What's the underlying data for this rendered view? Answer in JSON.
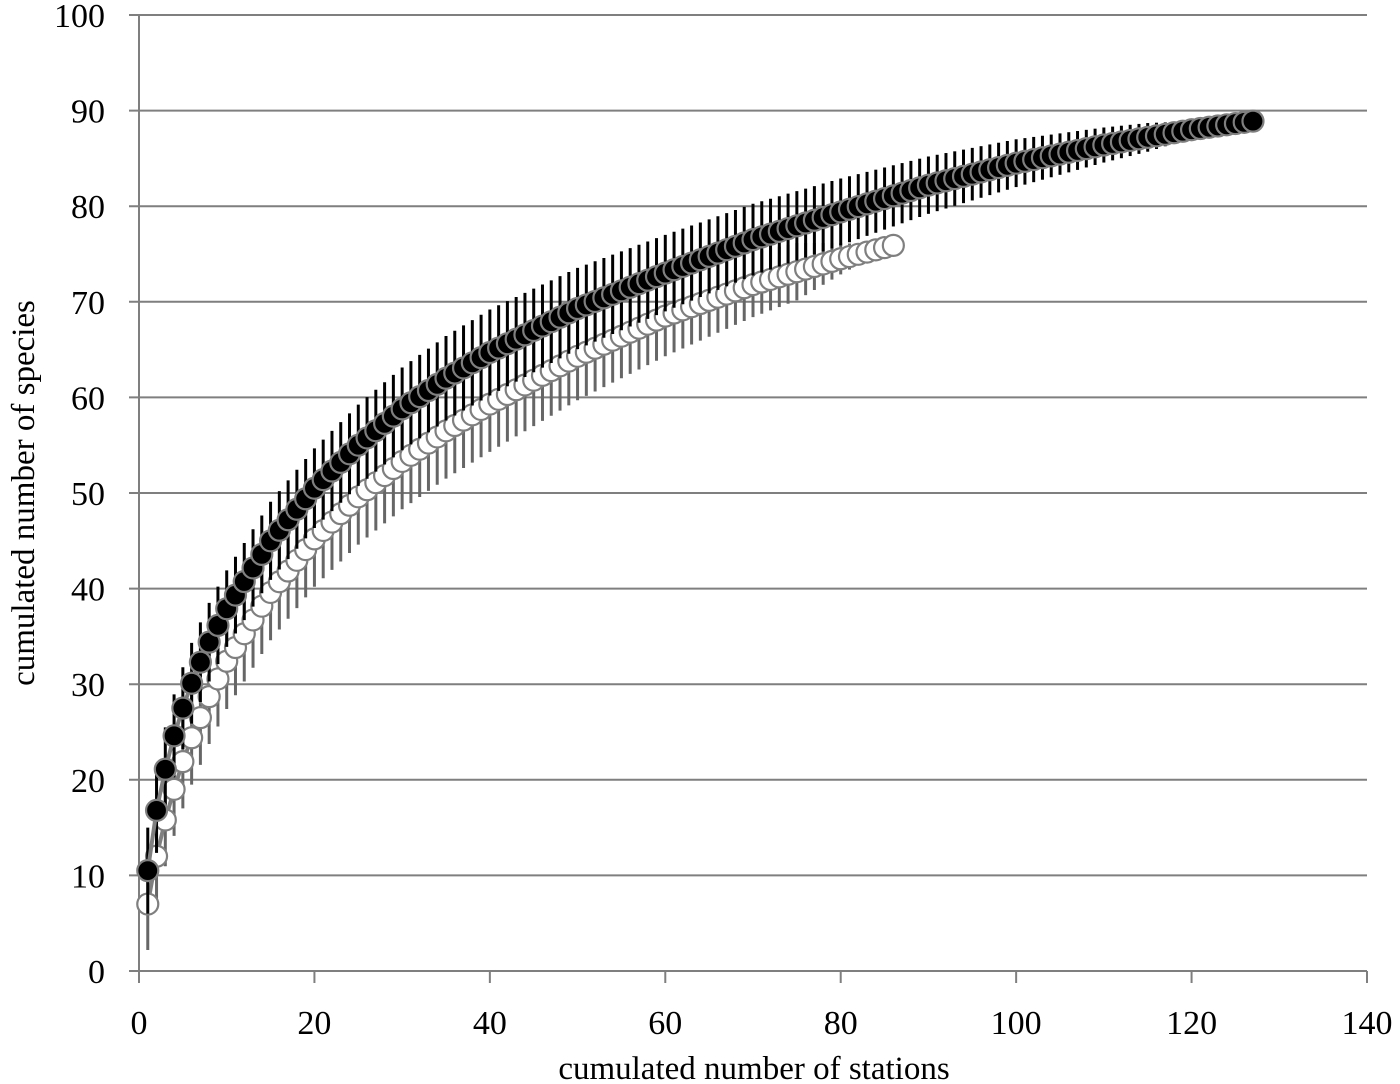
{
  "chart_data": {
    "type": "scatter",
    "title": "",
    "xlabel": "cumulated number of stations",
    "ylabel": "cumulated number of species",
    "xlim": [
      0,
      140
    ],
    "ylim": [
      0,
      100
    ],
    "x_ticks": [
      0,
      20,
      40,
      60,
      80,
      100,
      120,
      140
    ],
    "y_ticks": [
      0,
      10,
      20,
      30,
      40,
      50,
      60,
      70,
      80,
      90,
      100
    ],
    "grid": {
      "horizontal": true,
      "vertical": false
    },
    "legend": null,
    "series": [
      {
        "name": "filled circles",
        "marker": "filled-circle",
        "color": "#000000",
        "error_bar_color": "#000000",
        "n_points": 127,
        "anchor_points": [
          [
            1,
            10.5
          ],
          [
            2,
            16.8
          ],
          [
            3,
            21.1
          ],
          [
            4,
            24.6
          ],
          [
            5,
            27.5
          ],
          [
            6,
            30.1
          ],
          [
            7,
            32.3
          ],
          [
            8,
            34.4
          ],
          [
            10,
            37.9
          ],
          [
            15,
            45.0
          ],
          [
            20,
            50.5
          ],
          [
            25,
            55.0
          ],
          [
            30,
            58.8
          ],
          [
            35,
            62.0
          ],
          [
            40,
            64.7
          ],
          [
            50,
            69.3
          ],
          [
            60,
            73.0
          ],
          [
            70,
            76.5
          ],
          [
            80,
            79.4
          ],
          [
            90,
            82.2
          ],
          [
            100,
            84.5
          ],
          [
            110,
            86.4
          ],
          [
            120,
            88.0
          ],
          [
            127,
            88.9
          ]
        ],
        "error_half_width_anchor": [
          [
            1,
            4.5
          ],
          [
            10,
            4.0
          ],
          [
            40,
            4.5
          ],
          [
            60,
            4.0
          ],
          [
            80,
            3.5
          ],
          [
            100,
            2.5
          ],
          [
            115,
            1.5
          ],
          [
            127,
            0.0
          ]
        ]
      },
      {
        "name": "open circles",
        "marker": "open-circle",
        "color": "#ffffff",
        "error_bar_color": "#666666",
        "n_points": 86,
        "anchor_points": [
          [
            1,
            7.0
          ],
          [
            2,
            12.0
          ],
          [
            3,
            15.8
          ],
          [
            4,
            19.0
          ],
          [
            5,
            21.9
          ],
          [
            6,
            24.4
          ],
          [
            7,
            26.5
          ],
          [
            8,
            28.7
          ],
          [
            10,
            32.4
          ],
          [
            15,
            39.6
          ],
          [
            20,
            45.2
          ],
          [
            25,
            49.6
          ],
          [
            30,
            53.3
          ],
          [
            35,
            56.5
          ],
          [
            40,
            59.3
          ],
          [
            50,
            64.3
          ],
          [
            60,
            68.5
          ],
          [
            70,
            71.8
          ],
          [
            80,
            74.5
          ],
          [
            86,
            75.9
          ]
        ],
        "error_half_width_anchor": [
          [
            1,
            4.8
          ],
          [
            10,
            5.0
          ],
          [
            40,
            5.0
          ],
          [
            60,
            4.2
          ],
          [
            75,
            3.0
          ],
          [
            86,
            0.0
          ]
        ]
      }
    ]
  },
  "axes": {
    "x_title": "cumulated number of stations",
    "y_title": "cumulated number of species",
    "x_tick_labels": [
      "0",
      "20",
      "40",
      "60",
      "80",
      "100",
      "120",
      "140"
    ],
    "y_tick_labels": [
      "0",
      "10",
      "20",
      "30",
      "40",
      "50",
      "60",
      "70",
      "80",
      "90",
      "100"
    ]
  },
  "colors": {
    "axis": "#7f7f7f",
    "grid": "#7f7f7f",
    "filled_marker": "#000000",
    "open_marker_fill": "#ffffff",
    "marker_stroke": "#7f7f7f",
    "connector_line": "#7f7f7f"
  }
}
